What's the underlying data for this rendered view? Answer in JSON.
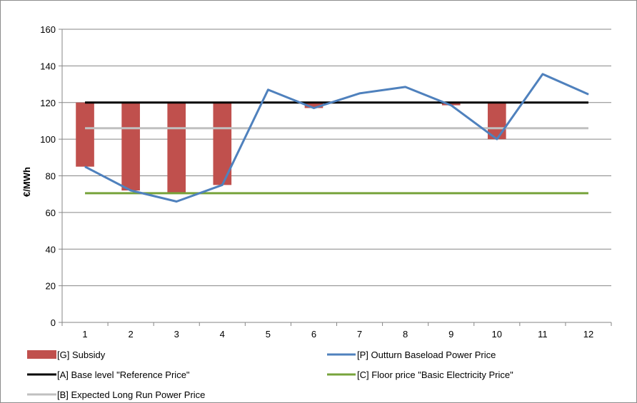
{
  "chart_data": {
    "type": "bar",
    "ylabel": "€/MWh",
    "xlabel": "",
    "ylim": [
      0,
      160
    ],
    "yticks": [
      0,
      20,
      40,
      60,
      80,
      100,
      120,
      140,
      160
    ],
    "categories": [
      "1",
      "2",
      "3",
      "4",
      "5",
      "6",
      "7",
      "8",
      "9",
      "10",
      "11",
      "12"
    ],
    "grid": true,
    "legend_position": "bottom",
    "subsidy": {
      "name": "[G] Subsidy",
      "color": "#c0504d",
      "base": 120,
      "lows": [
        85,
        72,
        71,
        75,
        null,
        117,
        null,
        null,
        118.5,
        100,
        null,
        null
      ]
    },
    "outturn": {
      "name": "[P] Outturn Baseload Power Price",
      "color": "#4f81bd",
      "values": [
        85,
        72,
        66,
        75,
        127,
        117,
        125,
        128.5,
        118.5,
        100,
        135.5,
        124.5
      ]
    },
    "reference": {
      "name": "[A] Base level  \"Reference Price\"",
      "color": "#000000",
      "value": 120
    },
    "floor": {
      "name": "[C] Floor price \"Basic Electricity Price\"",
      "color": "#77a33b",
      "value": 70.5
    },
    "expected": {
      "name": "[B] Expected Long Run Power Price",
      "color": "#c0c0c0",
      "value": 106
    }
  }
}
